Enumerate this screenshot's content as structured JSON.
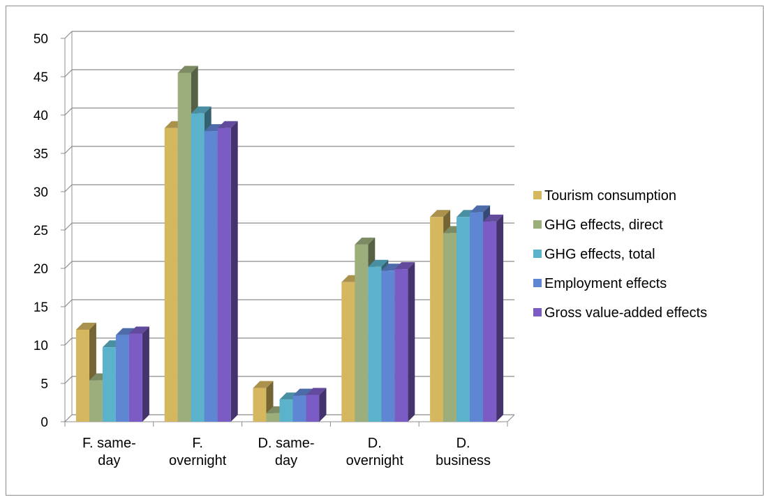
{
  "chart_data": {
    "type": "bar",
    "style": "3d-clustered-column",
    "title": "",
    "xlabel": "",
    "ylabel": "",
    "ylim": [
      0,
      50
    ],
    "yticks": [
      0,
      5,
      10,
      15,
      20,
      25,
      30,
      35,
      40,
      45,
      50
    ],
    "grid": true,
    "legend_position": "right",
    "categories": [
      [
        "F. same-",
        "day"
      ],
      [
        "F.",
        "overnight"
      ],
      [
        "D. same-",
        "day"
      ],
      [
        "D.",
        "overnight"
      ],
      [
        "D.",
        "business"
      ]
    ],
    "series": [
      {
        "name": "Tourism consumption",
        "color": "#D4B75F",
        "values": [
          12,
          38.3,
          4.4,
          18.2,
          26.7
        ]
      },
      {
        "name": "GHG effects, direct",
        "color": "#9BAE7C",
        "values": [
          5.4,
          45.5,
          1.1,
          23.1,
          24.6
        ]
      },
      {
        "name": "GHG effects, total",
        "color": "#5BB3CB",
        "values": [
          9.7,
          40.2,
          2.9,
          20.2,
          26.7
        ]
      },
      {
        "name": "Employment effects",
        "color": "#5F86D2",
        "values": [
          11.3,
          37.9,
          3.4,
          19.7,
          27.3
        ]
      },
      {
        "name": "Gross value-added effects",
        "color": "#7B5CC4",
        "values": [
          11.5,
          38.3,
          3.5,
          19.9,
          26.1
        ]
      }
    ]
  }
}
